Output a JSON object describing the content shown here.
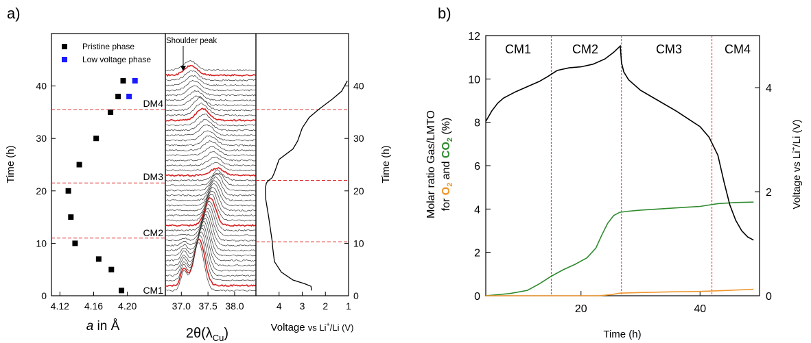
{
  "panel_a": {
    "label": "a)",
    "lattice": {
      "xlabel_italic": "a",
      "xlabel_rest": " in Å",
      "ylabel": "Time (h)",
      "xticks": [
        "4.12",
        "4.16",
        "4.20"
      ],
      "yticks": [
        "0",
        "10",
        "20",
        "30",
        "40"
      ],
      "legend": [
        "Pristine phase",
        "Low voltage phase"
      ]
    },
    "xrd": {
      "xlabel_main": "2θ(λ",
      "xlabel_sub": "Cu",
      "xlabel_end": ")",
      "xticks": [
        "37.0",
        "37.5",
        "38.0"
      ],
      "annotation": "Shoulder peak",
      "state_labels": [
        "CM1",
        "CM2",
        "DM3",
        "DM4"
      ]
    },
    "voltage": {
      "xlabel_main": "Voltage ",
      "xlabel_small": "vs Li",
      "xlabel_sup": "+",
      "xlabel_end": "/Li (V)",
      "xticks": [
        "4",
        "3",
        "2",
        "1"
      ],
      "ylabel": "Time (h)",
      "yticks": [
        "0",
        "10",
        "20",
        "30",
        "40"
      ]
    }
  },
  "panel_b": {
    "label": "b)",
    "xlabel": "Time (h)",
    "ylabel_left_line1": "Molar ratio Gas/LMTO",
    "ylabel_left_for": "for ",
    "ylabel_left_o2": "O",
    "ylabel_left_o2_sub": "2",
    "ylabel_left_and": " and ",
    "ylabel_left_co2": "CO",
    "ylabel_left_co2_sub": "2",
    "ylabel_left_pct": " (%)",
    "ylabel_right_a": "Voltage vs Li",
    "ylabel_right_sup": "+",
    "ylabel_right_b": "/Li (V)",
    "xticks": [
      "20",
      "40"
    ],
    "yticks_left": [
      "0",
      "2",
      "4",
      "6",
      "8",
      "10",
      "12"
    ],
    "yticks_right": [
      "0",
      "2",
      "4"
    ],
    "regions": [
      "CM1",
      "CM2",
      "CM3",
      "CM4"
    ]
  },
  "chart_data": [
    {
      "type": "scatter",
      "xlabel": "a in Å",
      "ylabel": "Time (h)",
      "xlim": [
        4.11,
        4.245
      ],
      "ylim": [
        0,
        50
      ],
      "series": [
        {
          "name": "Pristine phase",
          "color": "#000000",
          "points": [
            [
              4.193,
              1
            ],
            [
              4.181,
              5
            ],
            [
              4.166,
              7
            ],
            [
              4.138,
              10
            ],
            [
              4.133,
              15
            ],
            [
              4.13,
              20
            ],
            [
              4.143,
              25
            ],
            [
              4.163,
              30
            ],
            [
              4.18,
              35
            ],
            [
              4.189,
              38
            ],
            [
              4.195,
              41
            ]
          ]
        },
        {
          "name": "Low voltage phase",
          "color": "#1a1aff",
          "points": [
            [
              4.202,
              38
            ],
            [
              4.209,
              41
            ]
          ]
        }
      ],
      "hlines_h": [
        11,
        21.5,
        35.5
      ]
    },
    {
      "type": "line",
      "xlabel": "2θ(λCu)",
      "xticks": [
        37.0,
        37.5,
        38.0
      ],
      "xlim": [
        36.7,
        38.4
      ],
      "ylim": [
        0,
        50
      ],
      "annotation": "Shoulder peak",
      "highlighted_scans": [
        "CM1",
        "CM2",
        "DM3",
        "DM4"
      ]
    },
    {
      "type": "line",
      "xlabel": "Voltage vs Li+/Li (V)",
      "ylabel": "Time (h)",
      "xlim": [
        5,
        1
      ],
      "ylim": [
        0,
        50
      ],
      "x": [
        2.6,
        2.62,
        2.9,
        3.4,
        3.9,
        4.2,
        4.27,
        4.3,
        4.35,
        4.45,
        4.58,
        4.59,
        4.55,
        4.45,
        4.3,
        4.2,
        4.0,
        3.4,
        3.2,
        3.0,
        2.7,
        2.3,
        2.0,
        1.7,
        1.3,
        1.05
      ],
      "y": [
        1,
        1.8,
        2.3,
        3,
        4.5,
        6.5,
        9,
        10.5,
        12,
        15,
        18.5,
        20.5,
        21.5,
        22,
        22.5,
        23.5,
        26,
        28,
        29.5,
        32,
        34,
        35.5,
        36.5,
        37.5,
        39,
        41
      ]
    },
    {
      "type": "line",
      "xlabel": "Time (h)",
      "ylabel": "Molar ratio Gas/LMTO for O2 and CO2 (%)",
      "ylabel_right": "Voltage vs Li+/Li (V)",
      "xlim": [
        4,
        50
      ],
      "ylim": [
        0,
        12
      ],
      "ylim_right": [
        0,
        5
      ],
      "region_boundaries": [
        15,
        26.8,
        42
      ],
      "regions": [
        "CM1",
        "CM2",
        "CM3",
        "CM4"
      ],
      "series": [
        {
          "name": "CO2",
          "color": "#2e8b2e",
          "axis": "left",
          "x": [
            4,
            8,
            11,
            13,
            15,
            17,
            19,
            21,
            22.5,
            23.5,
            24.5,
            25.5,
            26.5,
            28,
            30,
            33,
            37,
            40,
            43,
            46,
            49
          ],
          "y": [
            0,
            0.1,
            0.25,
            0.55,
            0.9,
            1.2,
            1.45,
            1.75,
            2.2,
            2.8,
            3.35,
            3.7,
            3.85,
            3.9,
            3.95,
            4.0,
            4.07,
            4.12,
            4.25,
            4.3,
            4.32
          ]
        },
        {
          "name": "O2",
          "color": "#f0952a",
          "axis": "left",
          "x": [
            4,
            23,
            25,
            26.5,
            30,
            35,
            40,
            45,
            49
          ],
          "y": [
            0,
            0,
            0.05,
            0.12,
            0.15,
            0.18,
            0.2,
            0.25,
            0.3
          ]
        },
        {
          "name": "Voltage",
          "color": "#000000",
          "axis": "right",
          "x": [
            4,
            5,
            6,
            7,
            9,
            11,
            13,
            14.5,
            16,
            18,
            20,
            22,
            24,
            25.5,
            26.6,
            26.8,
            27.2,
            28,
            30,
            33,
            36,
            38,
            40,
            41.5,
            43,
            44,
            45,
            46,
            47,
            48,
            49
          ],
          "y": [
            3.35,
            3.55,
            3.7,
            3.8,
            3.92,
            4.02,
            4.12,
            4.22,
            4.33,
            4.38,
            4.4,
            4.45,
            4.55,
            4.68,
            4.8,
            4.48,
            4.3,
            4.15,
            3.95,
            3.75,
            3.55,
            3.4,
            3.25,
            3.05,
            2.7,
            2.2,
            1.75,
            1.45,
            1.25,
            1.13,
            1.07
          ]
        }
      ]
    }
  ]
}
